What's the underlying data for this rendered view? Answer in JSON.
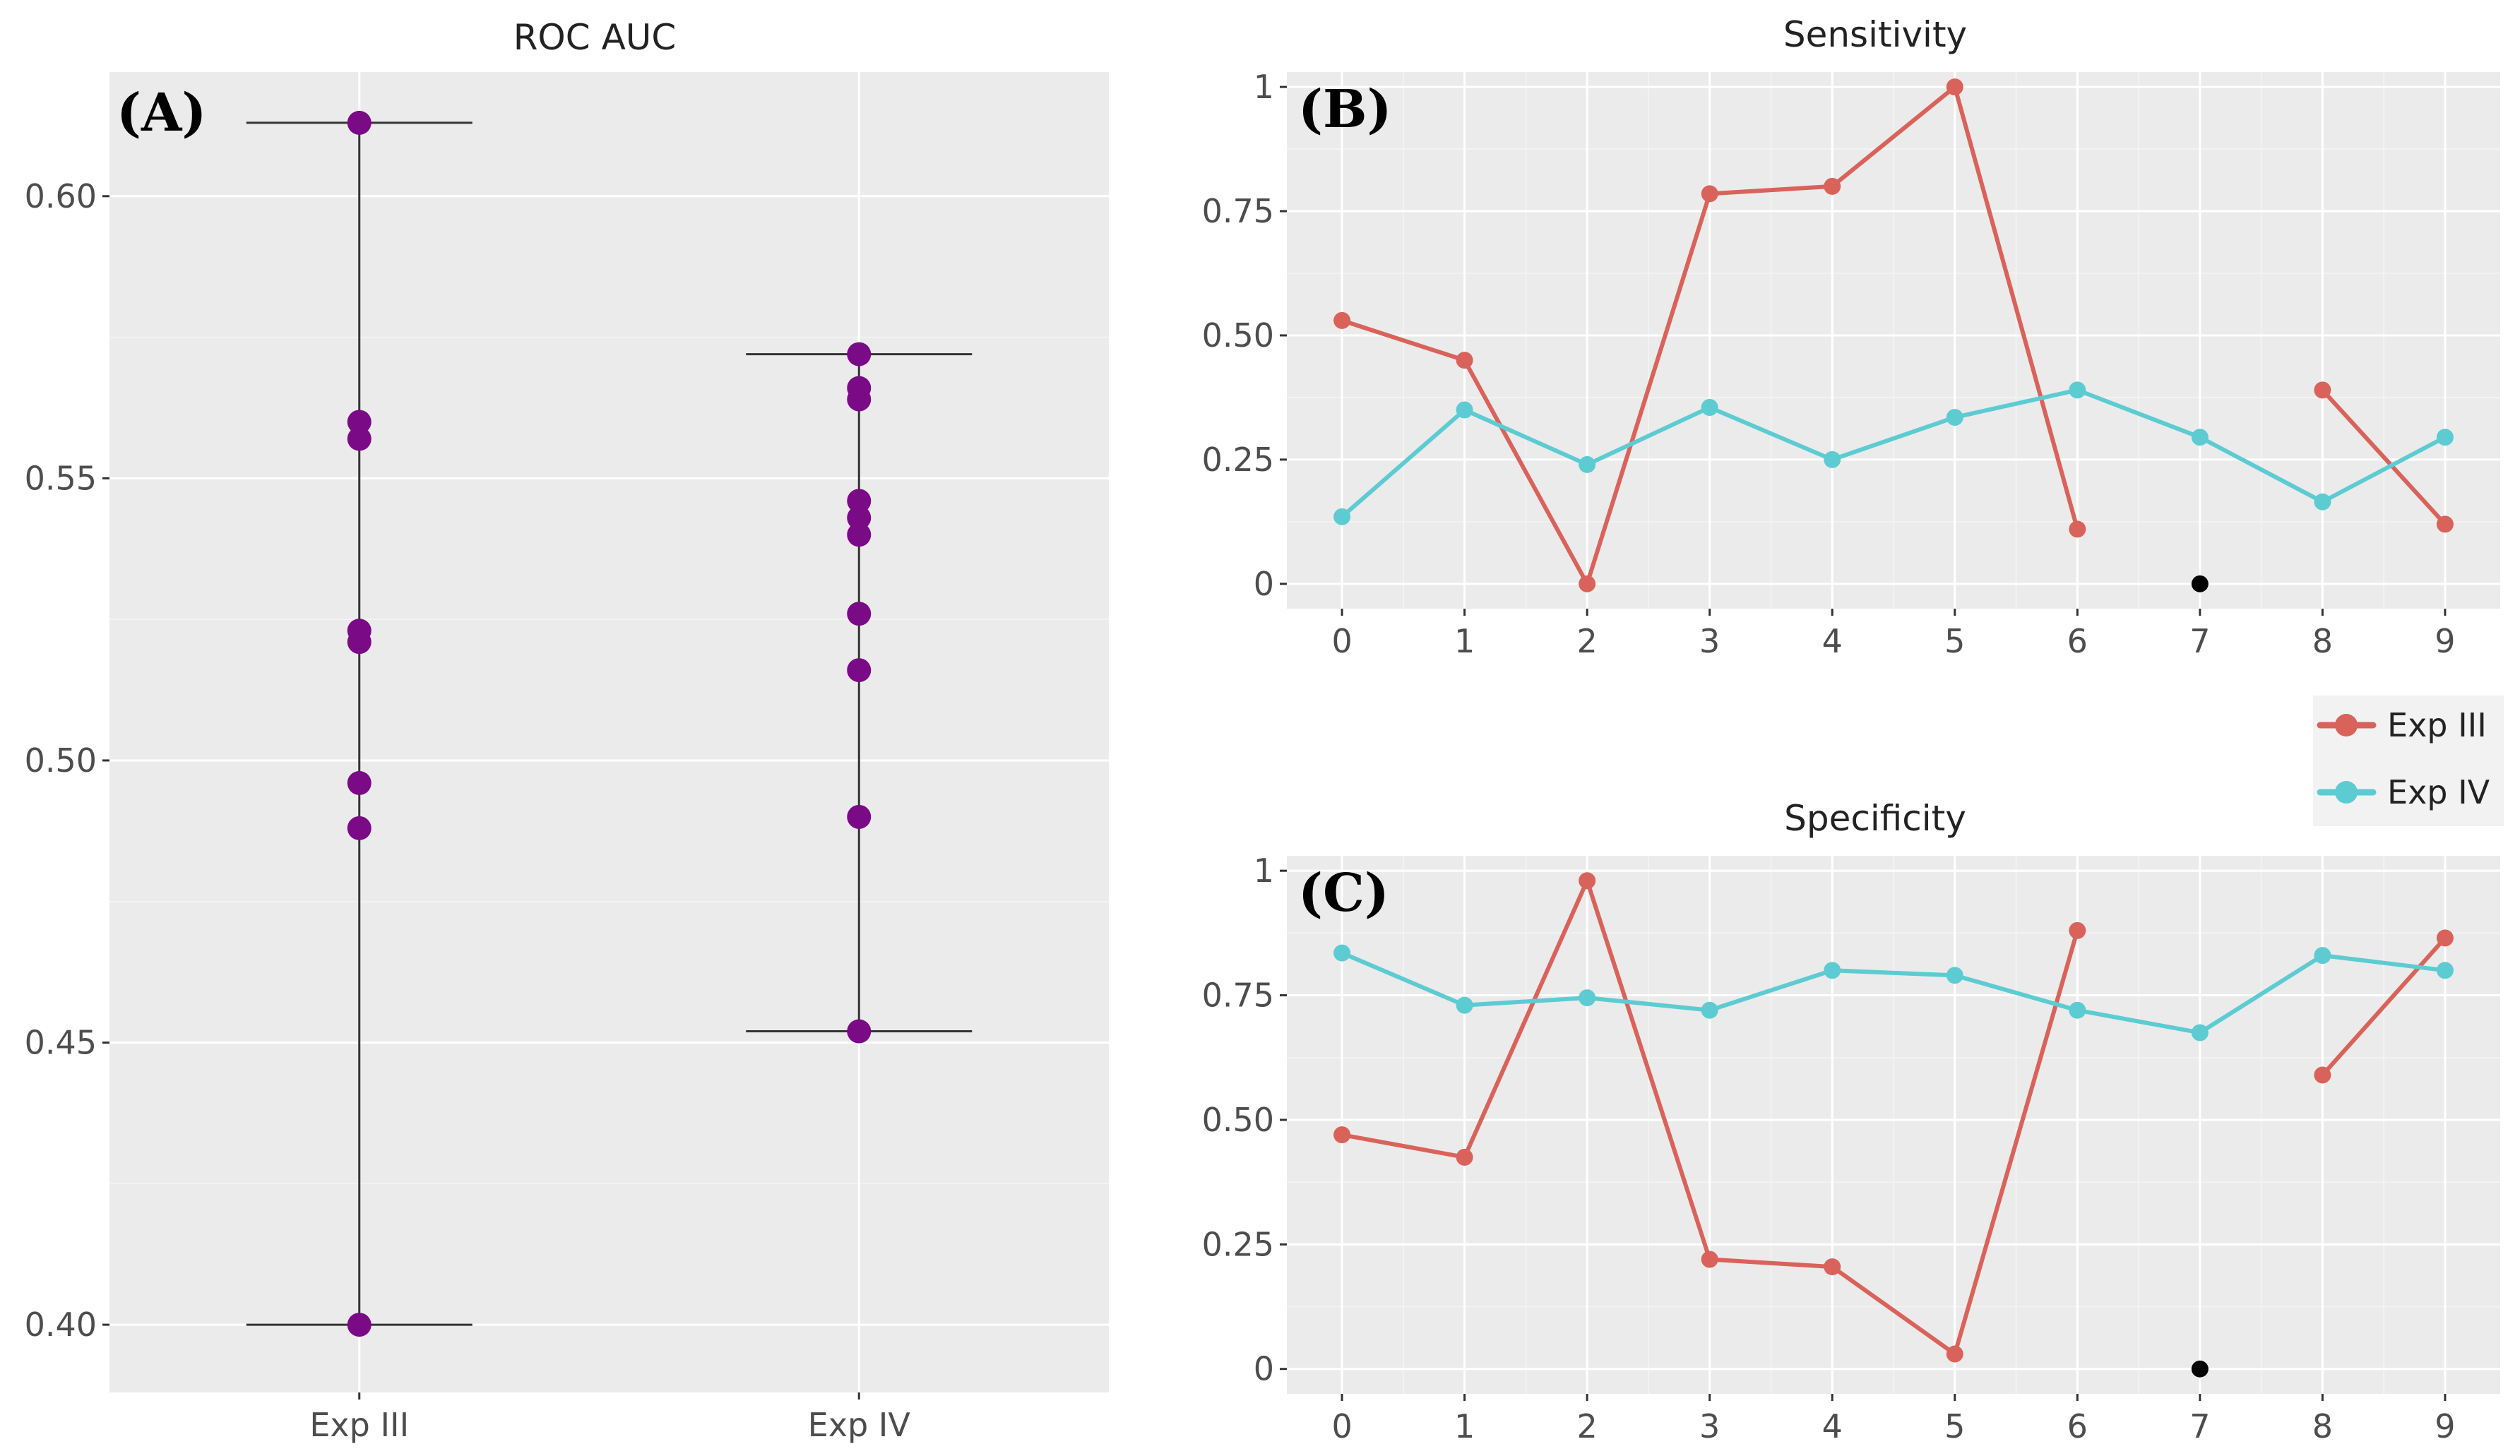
{
  "colors": {
    "panel_bg": "#ebebeb",
    "grid": "#ffffff",
    "exp_iii": "#d9625a",
    "exp_iv": "#5dcbd2",
    "auc_points": "#7a0a86",
    "errorbar": "#333333",
    "na_marker": "#000000"
  },
  "chart_data": [
    {
      "type": "scatter",
      "panel_label": "(A)",
      "title": "ROC AUC",
      "xlabel": "",
      "ylabel": "",
      "categories": [
        "Exp III",
        "Exp IV"
      ],
      "ylim": [
        0.388,
        0.622
      ],
      "yticks": [
        0.4,
        0.45,
        0.5,
        0.55,
        0.6
      ],
      "ytick_labels": [
        "0.40",
        "0.45",
        "0.50",
        "0.55",
        "0.60"
      ],
      "grid": true,
      "series": [
        {
          "category": "Exp III",
          "values": [
            0.613,
            0.56,
            0.557,
            0.523,
            0.521,
            0.496,
            0.488,
            0.4
          ],
          "range": [
            0.4,
            0.613
          ]
        },
        {
          "category": "Exp IV",
          "values": [
            0.572,
            0.566,
            0.564,
            0.546,
            0.543,
            0.54,
            0.526,
            0.516,
            0.49,
            0.452
          ],
          "range": [
            0.452,
            0.572
          ]
        }
      ]
    },
    {
      "type": "line",
      "panel_label": "(B)",
      "title": "Sensitivity",
      "xlabel": "",
      "ylabel": "",
      "x": [
        0,
        1,
        2,
        3,
        4,
        5,
        6,
        7,
        8,
        9
      ],
      "xlim": [
        -0.45,
        9.45
      ],
      "ylim": [
        -0.05,
        1.03
      ],
      "yticks": [
        0,
        0.25,
        0.5,
        0.75,
        1
      ],
      "ytick_labels": [
        "0",
        "0.25",
        "0.50",
        "0.75",
        "1"
      ],
      "grid": true,
      "series": [
        {
          "name": "Exp III",
          "values": [
            0.53,
            0.45,
            0.0,
            0.785,
            0.8,
            1.0,
            0.11,
            null,
            0.39,
            0.12
          ]
        },
        {
          "name": "Exp IV",
          "values": [
            0.135,
            0.35,
            0.24,
            0.355,
            0.25,
            0.335,
            0.39,
            0.295,
            0.165,
            0.295
          ]
        }
      ],
      "na_points": [
        {
          "x": 7,
          "y": 0
        }
      ]
    },
    {
      "type": "line",
      "panel_label": "(C)",
      "title": "Specificity",
      "xlabel": "",
      "ylabel": "",
      "x": [
        0,
        1,
        2,
        3,
        4,
        5,
        6,
        7,
        8,
        9
      ],
      "xlim": [
        -0.45,
        9.45
      ],
      "ylim": [
        -0.05,
        1.03
      ],
      "yticks": [
        0,
        0.25,
        0.5,
        0.75,
        1
      ],
      "ytick_labels": [
        "0",
        "0.25",
        "0.50",
        "0.75",
        "1"
      ],
      "grid": true,
      "series": [
        {
          "name": "Exp III",
          "values": [
            0.47,
            0.425,
            0.98,
            0.22,
            0.205,
            0.03,
            0.88,
            null,
            0.59,
            0.865
          ]
        },
        {
          "name": "Exp IV",
          "values": [
            0.835,
            0.73,
            0.745,
            0.72,
            0.8,
            0.79,
            0.72,
            0.675,
            0.83,
            0.8
          ]
        }
      ],
      "na_points": [
        {
          "x": 7,
          "y": 0
        }
      ]
    }
  ],
  "legend": {
    "placement": "right",
    "entries": [
      {
        "label": "Exp III",
        "color_key": "exp_iii"
      },
      {
        "label": "Exp IV",
        "color_key": "exp_iv"
      }
    ]
  }
}
